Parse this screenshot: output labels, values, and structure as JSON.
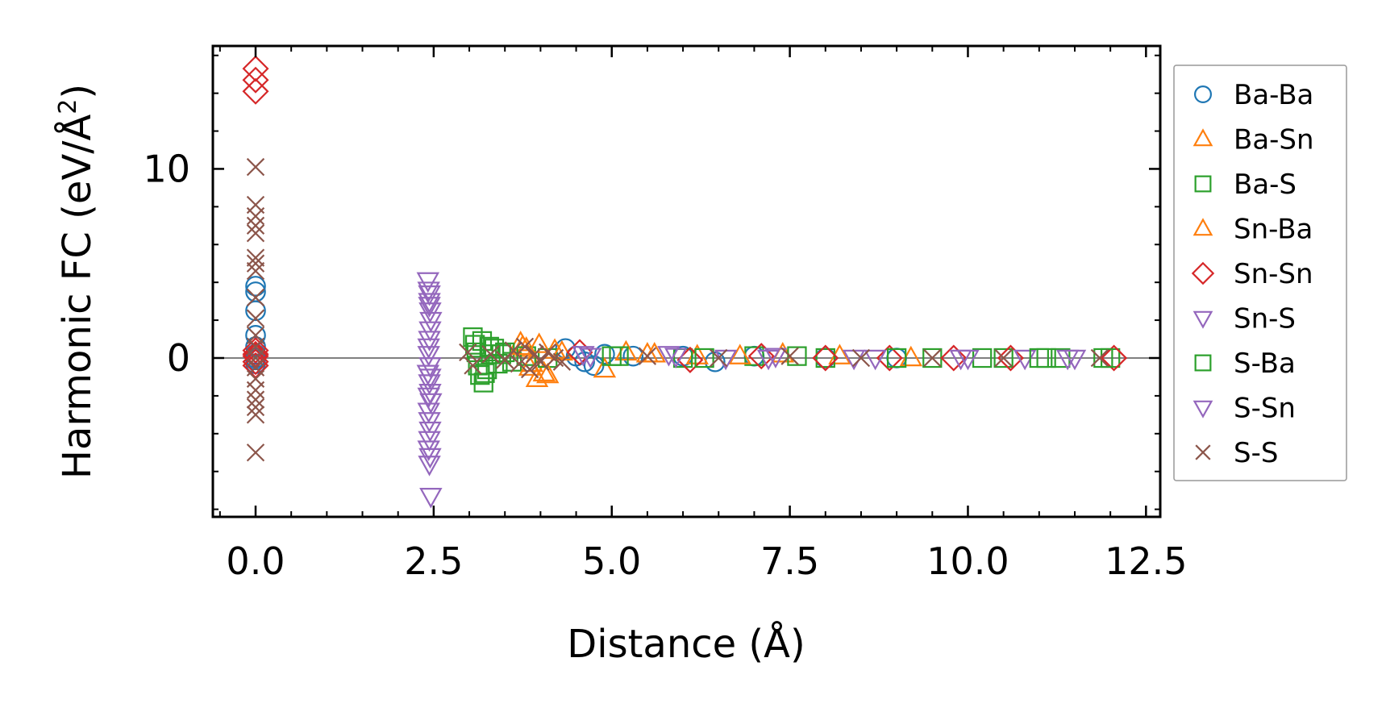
{
  "chart_data": {
    "type": "scatter",
    "title": "",
    "xlabel": "Distance (Å)",
    "ylabel": "Harmonic FC (eV/Å",
    "ylabel_sup": "2",
    "ylabel_end": ")",
    "xlim": [
      -0.6,
      12.7
    ],
    "ylim": [
      -8.4,
      16.5
    ],
    "xticks": [
      0.0,
      2.5,
      5.0,
      7.5,
      10.0,
      12.5
    ],
    "xtick_labels": [
      "0.0",
      "2.5",
      "5.0",
      "7.5",
      "10.0",
      "12.5"
    ],
    "yticks": [
      0,
      10
    ],
    "ytick_labels": [
      "0",
      "10"
    ],
    "zero_line": true,
    "legend_position": "outside-right",
    "series": [
      {
        "name": "Ba-Ba",
        "marker": "circle",
        "color": "#1f77b4",
        "x": [
          0,
          0,
          0,
          0,
          0,
          0,
          0,
          0,
          0,
          4.35,
          4.5,
          4.62,
          4.75,
          4.9,
          5.3,
          6.0,
          6.45,
          7.0,
          8.0,
          9.0
        ],
        "y": [
          3.8,
          3.5,
          1.2,
          0.6,
          0.2,
          -0.1,
          -0.3,
          0,
          2.5,
          0.5,
          0.1,
          -0.2,
          -0.4,
          0.2,
          0.1,
          0.1,
          -0.2,
          0.1,
          0,
          0
        ]
      },
      {
        "name": "Ba-Sn",
        "marker": "triangle-up",
        "color": "#ff7f0e",
        "x": [
          3.72,
          3.8,
          3.88,
          3.95,
          4.05,
          4.2,
          4.9,
          5.2,
          5.5,
          6.2,
          7.4,
          8.2,
          9.2
        ],
        "y": [
          0.8,
          0.5,
          -0.3,
          -1.1,
          -0.8,
          0.4,
          -0.6,
          0.3,
          0.2,
          0.1,
          0.2,
          0.1,
          0
        ]
      },
      {
        "name": "Ba-S",
        "marker": "square",
        "color": "#2ca02c",
        "x": [
          3.05,
          3.08,
          3.1,
          3.12,
          3.15,
          3.2,
          3.25,
          3.3,
          3.35,
          3.4,
          3.5,
          3.6,
          3.8,
          4.1,
          5.0,
          6.0,
          7.0,
          8.0,
          9.5,
          10.5,
          11.1,
          11.3,
          12.0
        ],
        "y": [
          1.1,
          0.7,
          0.3,
          -0.4,
          -0.9,
          -1.3,
          -0.6,
          0.2,
          0.5,
          -0.3,
          0.3,
          -0.2,
          0.1,
          0,
          0.1,
          0,
          0.1,
          0,
          0,
          0,
          0,
          0,
          0
        ]
      },
      {
        "name": "Sn-Ba",
        "marker": "triangle-up",
        "color": "#ff7f0e",
        "x": [
          3.75,
          3.85,
          3.98,
          4.1,
          4.3,
          5.6,
          6.8
        ],
        "y": [
          0.6,
          -0.5,
          0.7,
          -0.9,
          0.3,
          0.2,
          0.1
        ]
      },
      {
        "name": "Sn-Sn",
        "marker": "diamond",
        "color": "#d62728",
        "x": [
          0,
          0,
          0,
          0,
          0,
          0,
          0,
          0,
          4.55,
          6.1,
          7.1,
          8.0,
          8.9,
          9.8,
          10.6,
          12.05
        ],
        "y": [
          15.3,
          14.7,
          14.1,
          0.4,
          0.1,
          -0.2,
          -0.4,
          0.2,
          0.3,
          -0.1,
          0.1,
          0,
          0,
          0,
          0,
          0
        ]
      },
      {
        "name": "Sn-S",
        "marker": "triangle-down",
        "color": "#9467bd",
        "x": [
          2.42,
          2.43,
          2.44,
          2.45,
          2.46,
          2.45,
          2.44,
          2.43,
          2.42,
          2.44,
          2.45,
          2.46,
          2.43,
          2.44,
          2.45,
          2.44,
          2.43,
          2.45,
          2.44,
          2.46,
          2.43,
          2.44,
          2.45,
          4.7,
          5.8,
          6.6,
          7.3,
          8.7,
          9.9,
          10.8,
          11.5
        ],
        "y": [
          4.1,
          3.6,
          3.0,
          2.5,
          2.0,
          1.5,
          1.0,
          0.6,
          -0.8,
          -1.3,
          -1.8,
          -2.3,
          -2.8,
          -3.3,
          -3.8,
          -4.3,
          -4.8,
          -5.2,
          -5.6,
          -7.3,
          0.2,
          2.8,
          -1.0,
          0.1,
          0.2,
          0,
          0.1,
          0,
          0,
          0,
          0
        ]
      },
      {
        "name": "S-Ba",
        "marker": "square",
        "color": "#2ca02c",
        "x": [
          3.18,
          3.22,
          3.28,
          3.45,
          5.1,
          6.3,
          7.6,
          9.0,
          10.2,
          11.0,
          11.9
        ],
        "y": [
          0.9,
          -0.8,
          0.6,
          0.2,
          0.1,
          0,
          0.1,
          0,
          0,
          0,
          0
        ]
      },
      {
        "name": "S-Sn",
        "marker": "triangle-down",
        "color": "#9467bd",
        "x": [
          2.44,
          2.45,
          2.43,
          4.6,
          5.9,
          7.2,
          8.4,
          10.0,
          11.4
        ],
        "y": [
          3.4,
          -0.4,
          -2.0,
          0.2,
          0.1,
          0,
          0,
          0,
          0
        ]
      },
      {
        "name": "S-S",
        "marker": "x",
        "color": "#8c564b",
        "x": [
          0,
          0,
          0,
          0,
          0,
          0,
          0,
          0,
          0,
          0,
          0,
          0,
          0,
          0,
          0,
          0,
          0,
          0,
          0,
          0,
          2.98,
          3.05,
          3.3,
          3.5,
          3.62,
          3.7,
          3.78,
          3.85,
          3.92,
          4.0,
          4.1,
          4.2,
          4.3,
          5.5,
          6.5,
          7.5,
          8.5,
          9.5,
          10.5,
          11.85
        ],
        "y": [
          10.1,
          8.1,
          7.5,
          7.0,
          6.6,
          5.3,
          5.0,
          4.6,
          3.2,
          2.1,
          1.2,
          0.6,
          -0.5,
          -1.1,
          -1.7,
          -2.2,
          -2.6,
          -3.0,
          -5.0,
          0,
          0.3,
          -0.4,
          0.2,
          -0.1,
          0.4,
          -0.3,
          0.6,
          -0.6,
          0.2,
          -0.2,
          0.3,
          0,
          -0.2,
          0.1,
          0,
          0.1,
          0,
          0,
          0,
          0
        ]
      }
    ]
  }
}
